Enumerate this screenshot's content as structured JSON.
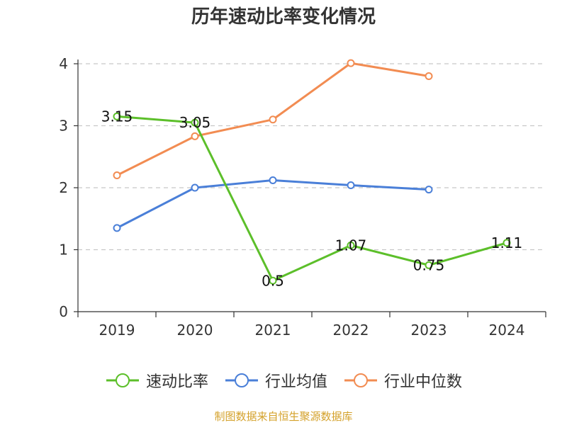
{
  "title": "历年速动比率变化情况",
  "footer": "制图数据来自恒生聚源数据库",
  "chart_data": {
    "type": "line",
    "title": "历年速动比率变化情况",
    "xlabel": "",
    "ylabel": "",
    "categories": [
      "2019",
      "2020",
      "2021",
      "2022",
      "2023",
      "2024"
    ],
    "ylim": [
      0,
      4
    ],
    "yticks": [
      0,
      1,
      2,
      3,
      4
    ],
    "grid": true,
    "legend_position": "bottom",
    "series": [
      {
        "name": "速动比率",
        "color": "#5cbf2a",
        "values": [
          3.15,
          3.05,
          0.5,
          1.07,
          0.75,
          1.11
        ],
        "labels": [
          "3.15",
          "3.05",
          "0.5",
          "1.07",
          "0.75",
          "1.11"
        ]
      },
      {
        "name": "行业均值",
        "color": "#4a7fd8",
        "values": [
          1.35,
          2.0,
          2.12,
          2.04,
          1.97,
          null
        ]
      },
      {
        "name": "行业中位数",
        "color": "#f28c52",
        "values": [
          2.2,
          2.83,
          3.1,
          4.01,
          3.8,
          null
        ]
      }
    ]
  }
}
